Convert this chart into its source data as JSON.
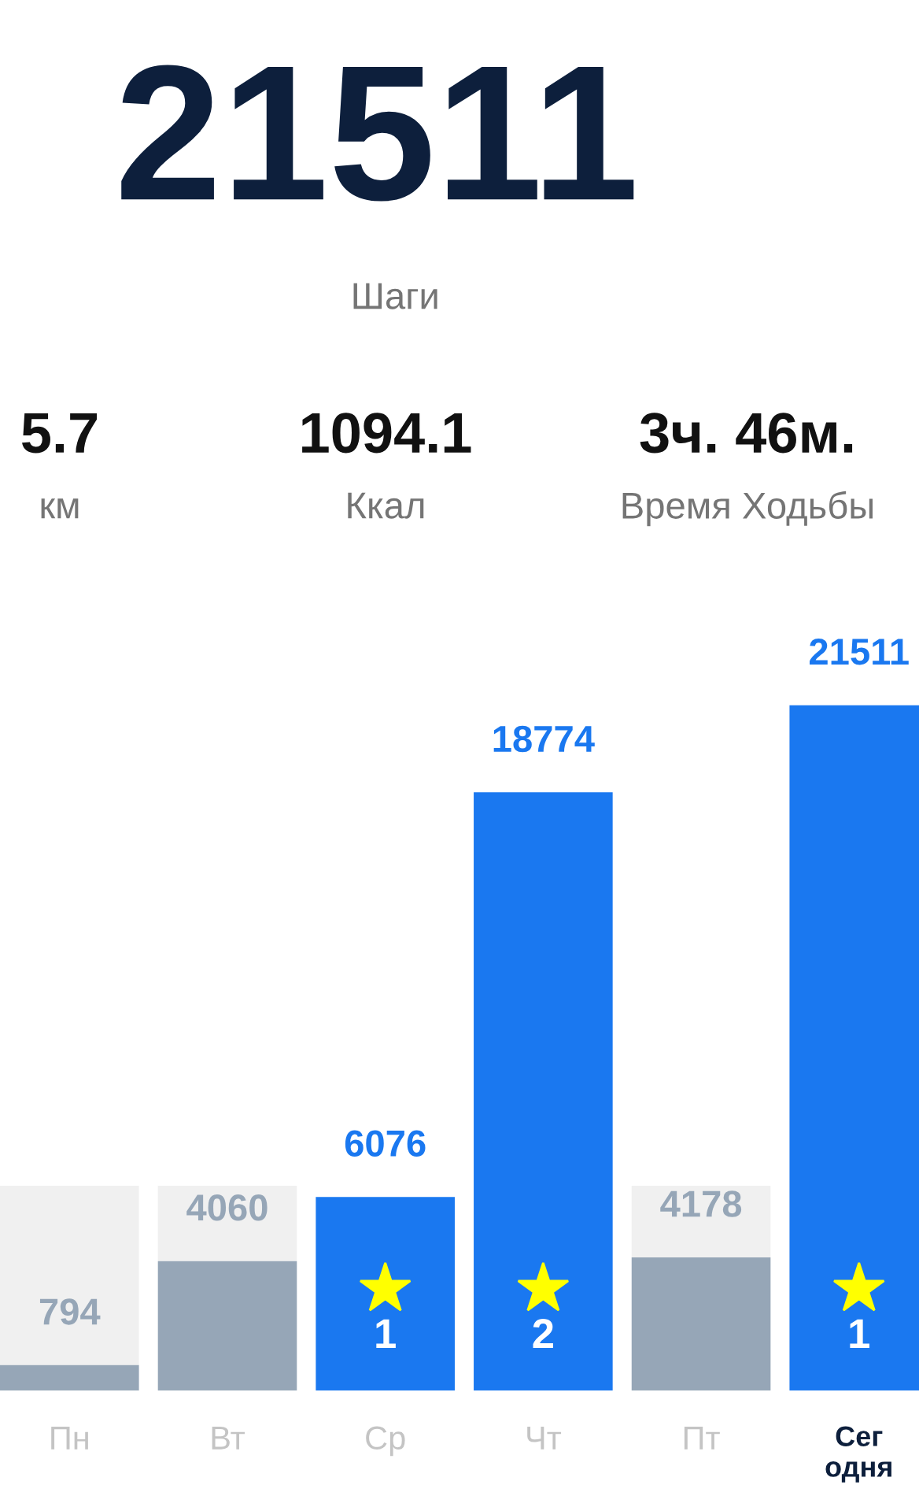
{
  "chart_data": {
    "type": "bar",
    "title": "21511",
    "subtitle": "Шаги",
    "categories": [
      "Пн",
      "Вт",
      "Ср",
      "Чт",
      "Пт",
      "Сег\nодня"
    ],
    "stacked": true,
    "series": [
      {
        "colors": [
          "#96a6b7",
          "#96a6b7",
          "#1a78f0",
          "#1a78f0",
          "#96a6b7",
          "#1a78f0"
        ],
        "values": [
          794,
          4060,
          6076,
          18774,
          4178,
          21511
        ],
        "value_labels": [
          "794",
          "4060",
          "6076",
          "18774",
          "4178",
          "21511"
        ]
      },
      {
        "color": "#f0f0f0",
        "values": [
          5630,
          2364,
          null,
          null,
          2246,
          null
        ]
      }
    ],
    "annotations": [
      "5.7",
      "км",
      "1094.1",
      "Ккал",
      "3ч. 46м.",
      "Время Ходьбы",
      "1",
      "2",
      "1"
    ],
    "grid": false,
    "legend": false
  }
}
